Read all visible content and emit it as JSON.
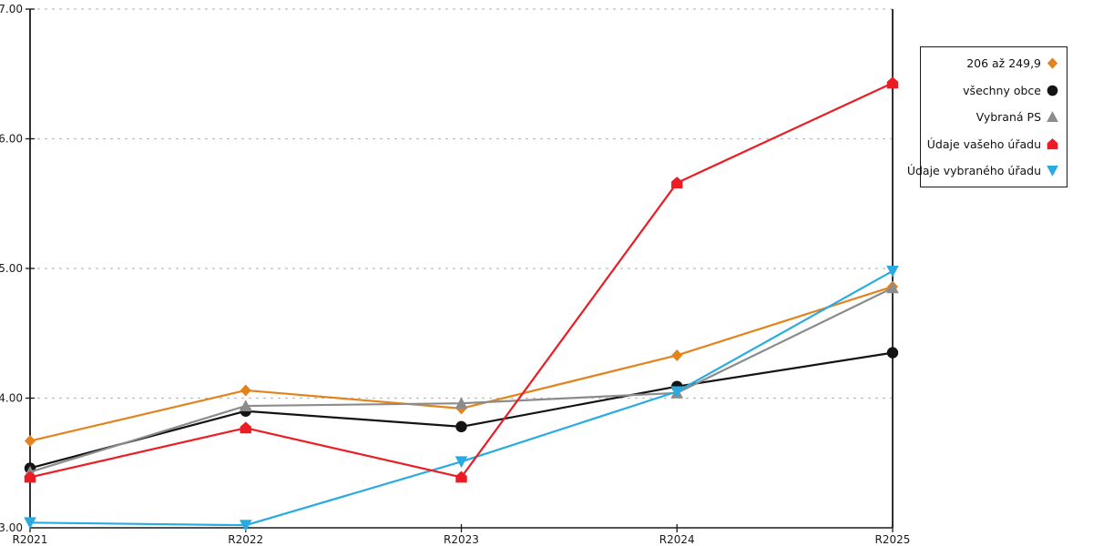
{
  "chart_data": {
    "type": "line",
    "title": "",
    "xlabel": "",
    "ylabel": "",
    "x_categories": [
      "R2021",
      "R2022",
      "R2023",
      "R2024",
      "R2025"
    ],
    "y_tick_labels": [
      "7.00",
      "6.00",
      "5.00",
      "4.00",
      "3.00"
    ],
    "y_tick_values": [
      7,
      6,
      5,
      4,
      3
    ],
    "ylim": [
      3.0,
      7.0
    ],
    "grid": "horizontal-dashed",
    "grid_color": "#bdbdbd",
    "axis_color": "#1a1a1a",
    "legend_position": "right-outside",
    "series": [
      {
        "name": "206 až 249,9",
        "color": "#e2831d",
        "marker": "diamond",
        "values": [
          3.67,
          4.06,
          3.92,
          4.33,
          4.86
        ]
      },
      {
        "name": "všechny obce",
        "color": "#141414",
        "marker": "circle",
        "values": [
          3.46,
          3.9,
          3.78,
          4.09,
          4.35
        ]
      },
      {
        "name": "Vybraná PS",
        "color": "#8c8c8c",
        "marker": "triangle-up",
        "values": [
          3.43,
          3.94,
          3.96,
          4.04,
          4.85
        ]
      },
      {
        "name": "Údaje vašeho úřadu",
        "color": "#ec1c24",
        "marker": "pentagon",
        "values": [
          3.39,
          3.77,
          3.39,
          5.66,
          6.43
        ]
      },
      {
        "name": "Údaje vybraného úřadu",
        "color": "#29abe2",
        "marker": "triangle-down",
        "values": [
          3.04,
          3.02,
          3.51,
          4.05,
          4.98
        ]
      }
    ],
    "draw_order": [
      0,
      1,
      2,
      4,
      3
    ]
  }
}
